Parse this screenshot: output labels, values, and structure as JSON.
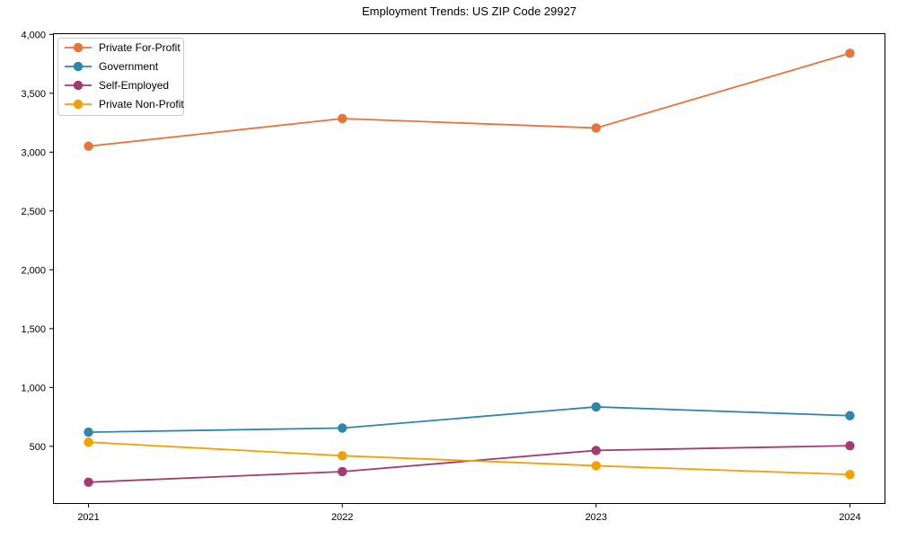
{
  "figure": {
    "background": "#ffffff",
    "axis_color": "#000000",
    "tick_label_color": "#000000",
    "legend_border_color": "#cccccc",
    "legend_background": "#ffffff"
  },
  "chart_data": {
    "type": "line",
    "title": "Employment Trends: US ZIP Code 29927",
    "xlabel": "",
    "ylabel": "",
    "x": [
      2021,
      2022,
      2023,
      2024
    ],
    "x_tick_labels": [
      "2021",
      "2022",
      "2023",
      "2024"
    ],
    "y_ticks": [
      500,
      1000,
      1500,
      2000,
      2500,
      3000,
      3500,
      4000
    ],
    "y_tick_labels": [
      "500",
      "1,000",
      "1,500",
      "2,000",
      "2,500",
      "3,000",
      "3,500",
      "4,000"
    ],
    "xlim": [
      2020.86,
      2024.14
    ],
    "ylim": [
      10,
      4010
    ],
    "grid": false,
    "legend_position": "upper-left",
    "series": [
      {
        "name": "Private For-Profit",
        "color": "#E8743B",
        "values": [
          3050,
          3285,
          3205,
          3840
        ]
      },
      {
        "name": "Government",
        "color": "#2E86AB",
        "values": [
          620,
          655,
          835,
          760
        ]
      },
      {
        "name": "Self-Employed",
        "color": "#A23B72",
        "values": [
          195,
          285,
          465,
          505
        ]
      },
      {
        "name": "Private Non-Profit",
        "color": "#F2A104",
        "values": [
          535,
          420,
          335,
          260
        ]
      }
    ]
  }
}
